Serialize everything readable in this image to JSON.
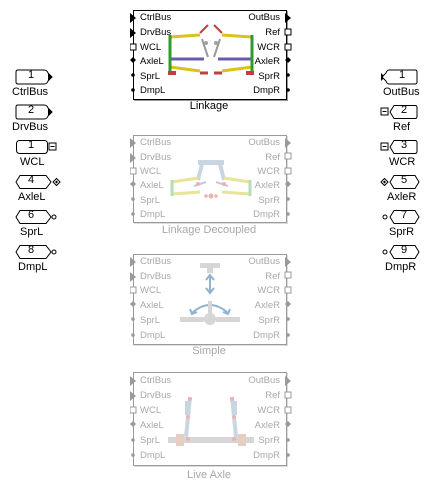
{
  "left_ports": [
    {
      "num": "1",
      "label": "CtrlBus"
    },
    {
      "num": "2",
      "label": "DrvBus"
    },
    {
      "num": "1",
      "label": "WCL"
    },
    {
      "num": "4",
      "label": "AxleL"
    },
    {
      "num": "6",
      "label": "SprL"
    },
    {
      "num": "8",
      "label": "DmpL"
    }
  ],
  "right_ports": [
    {
      "num": "1",
      "label": "OutBus"
    },
    {
      "num": "2",
      "label": "Ref"
    },
    {
      "num": "3",
      "label": "WCR"
    },
    {
      "num": "5",
      "label": "AxleR"
    },
    {
      "num": "7",
      "label": "SprR"
    },
    {
      "num": "9",
      "label": "DmpR"
    }
  ],
  "block_ports_left": [
    "CtrlBus",
    "DrvBus",
    "WCL",
    "AxleL",
    "SprL",
    "DmpL"
  ],
  "block_ports_right": [
    "OutBus",
    "Ref",
    "WCR",
    "AxleR",
    "SprR",
    "DmpR"
  ],
  "blocks": [
    {
      "title": "Linkage"
    },
    {
      "title": "Linkage Decoupled"
    },
    {
      "title": "Simple"
    },
    {
      "title": "Live Axle"
    }
  ]
}
